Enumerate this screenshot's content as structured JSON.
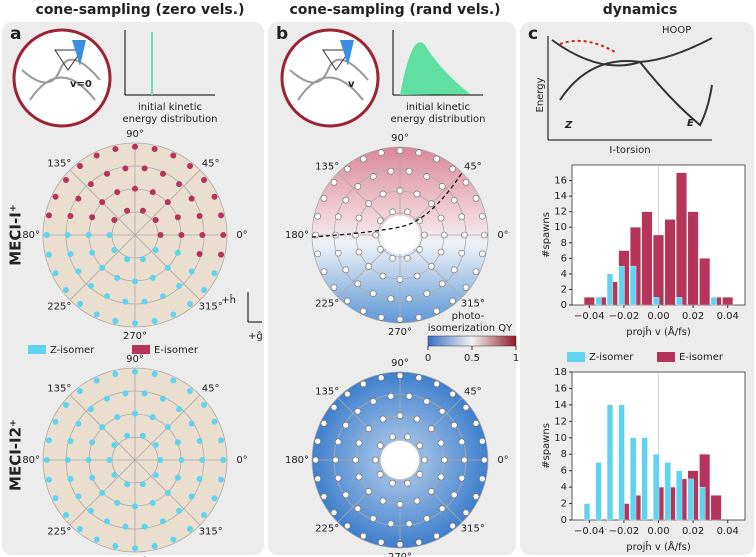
{
  "headers": [
    "cone-sampling (zero vels.)",
    "cone-sampling (rand vels.)",
    "dynamics"
  ],
  "panel_letters": [
    "a",
    "b",
    "c"
  ],
  "row_labels": [
    "MECI-I⁺",
    "MECI-I2⁺"
  ],
  "polar_angle_labels": [
    "90°",
    "45°",
    "0°",
    "315°",
    "270°",
    "225°",
    "180°",
    "135°"
  ],
  "insets": {
    "zero_v": "v=0",
    "rand_v": "v",
    "kinetic_label_1": "initial kinetic",
    "kinetic_label_2": "energy distribution"
  },
  "direction_labels": {
    "h": "+ĥ",
    "g": "+ĝ"
  },
  "colorbar": {
    "label_1": "photo-",
    "label_2": "isomerization QY",
    "ticks": [
      0,
      0.5,
      1
    ]
  },
  "energy_diagram": {
    "y_label": "Energy",
    "x_label": "I-torsion",
    "z": "Z",
    "e": "E",
    "hoop": "HOOP"
  },
  "chart_data": [
    {
      "type": "bar",
      "y_label": "#spawns",
      "x_label": "projĥ v (Å/fs)",
      "x": [
        -0.04,
        -0.0333,
        -0.0267,
        -0.02,
        -0.0133,
        -0.0067,
        0,
        0.0067,
        0.0133,
        0.02,
        0.0267,
        0.0333,
        0.04
      ],
      "series": [
        {
          "name": "E-isomer",
          "color": "#b5345a",
          "values": [
            1,
            1,
            3,
            7,
            10,
            12,
            9,
            11,
            17,
            12,
            6,
            1,
            1
          ]
        },
        {
          "name": "Z-isomer",
          "color": "#5fd3f0",
          "values": [
            0,
            1,
            4,
            5,
            5,
            0,
            1,
            0,
            1,
            0,
            0,
            1,
            0
          ]
        }
      ],
      "xlim": [
        -0.05,
        0.05
      ],
      "ylim": [
        0,
        18
      ],
      "xticks": [
        {
          "value": -0.04,
          "label": "−0.04"
        },
        {
          "value": -0.02,
          "label": "−0.02"
        },
        {
          "value": 0,
          "label": "0.00"
        },
        0.02,
        0.04
      ],
      "yticks": [
        0,
        2,
        4,
        6,
        8,
        10,
        12,
        14,
        16
      ]
    },
    {
      "type": "bar",
      "y_label": "#spawns",
      "x_label": "projĥ v (Å/fs)",
      "x": [
        -0.04,
        -0.0333,
        -0.0267,
        -0.02,
        -0.0133,
        -0.0067,
        0,
        0.0067,
        0.0133,
        0.02,
        0.0267,
        0.0333,
        0.04
      ],
      "series": [
        {
          "name": "E-isomer",
          "color": "#b5345a",
          "values": [
            0,
            0,
            0,
            2,
            3,
            0,
            4,
            4,
            5,
            6,
            8,
            3,
            0
          ]
        },
        {
          "name": "Z-isomer",
          "color": "#5fd3f0",
          "values": [
            2,
            7,
            14,
            14,
            10,
            10,
            8,
            7,
            6,
            5,
            4,
            0,
            0
          ]
        }
      ],
      "xlim": [
        -0.05,
        0.05
      ],
      "ylim": [
        0,
        18
      ],
      "xticks": [
        {
          "value": -0.04,
          "label": "−0.04"
        },
        {
          "value": -0.02,
          "label": "−0.02"
        },
        {
          "value": 0,
          "label": "0.00"
        },
        0.02,
        0.04
      ],
      "yticks": [
        0,
        2,
        4,
        6,
        8,
        10,
        12,
        14,
        16,
        18
      ],
      "legend": "upper left"
    }
  ]
}
